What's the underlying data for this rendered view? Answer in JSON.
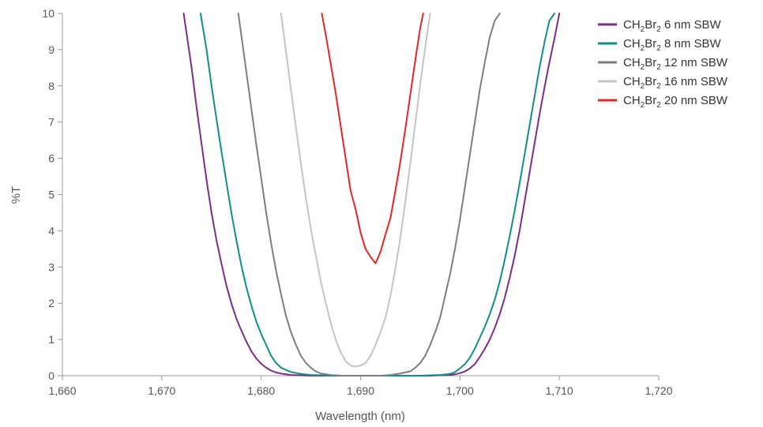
{
  "chart_data": {
    "type": "line",
    "xlabel": "Wavelength (nm)",
    "ylabel": "%T",
    "xlim": [
      1660,
      1720
    ],
    "ylim": [
      0,
      10
    ],
    "x_ticks": [
      {
        "value": 1660,
        "label": "1,660"
      },
      {
        "value": 1670,
        "label": "1,670"
      },
      {
        "value": 1680,
        "label": "1,680"
      },
      {
        "value": 1690,
        "label": "1,690"
      },
      {
        "value": 1700,
        "label": "1,700"
      },
      {
        "value": 1710,
        "label": "1,710"
      },
      {
        "value": 1720,
        "label": "1,720"
      }
    ],
    "y_ticks": [
      {
        "value": 0,
        "label": "0"
      },
      {
        "value": 1,
        "label": "1"
      },
      {
        "value": 2,
        "label": "2"
      },
      {
        "value": 3,
        "label": "3"
      },
      {
        "value": 4,
        "label": "4"
      },
      {
        "value": 5,
        "label": "5"
      },
      {
        "value": 6,
        "label": "6"
      },
      {
        "value": 7,
        "label": "7"
      },
      {
        "value": 8,
        "label": "8"
      },
      {
        "value": 9,
        "label": "9"
      },
      {
        "value": 10,
        "label": "10"
      }
    ],
    "grid": false,
    "legend_position": "top-right",
    "series": [
      {
        "name": "CH2Br2 6 nm SBW",
        "label_parts": {
          "pre": "CH",
          "sub1": "2",
          "mid": "Br",
          "sub2": "2",
          "post": " 6 nm SBW"
        },
        "color": "#7b2d8b",
        "x": [
          1672.2,
          1673,
          1673.5,
          1674,
          1674.5,
          1675,
          1675.5,
          1676,
          1676.5,
          1677,
          1677.5,
          1678,
          1678.5,
          1679,
          1679.5,
          1680,
          1680.5,
          1681,
          1681.5,
          1682,
          1682.5,
          1683,
          1684,
          1685,
          1686,
          1687,
          1688,
          1689,
          1690,
          1691,
          1692,
          1693,
          1694,
          1695,
          1696,
          1697,
          1698,
          1699,
          1699.5,
          1700,
          1700.5,
          1701,
          1701.5,
          1702,
          1702.5,
          1703,
          1703.5,
          1704,
          1704.5,
          1705,
          1705.5,
          1706,
          1706.5,
          1707,
          1707.5,
          1708,
          1708.5,
          1709,
          1709.5,
          1710
        ],
        "y": [
          10,
          8.5,
          7.4,
          6.4,
          5.4,
          4.5,
          3.75,
          3.1,
          2.5,
          2.0,
          1.58,
          1.25,
          0.95,
          0.68,
          0.48,
          0.33,
          0.22,
          0.14,
          0.09,
          0.06,
          0.04,
          0.02,
          0.01,
          0.0,
          0.0,
          0.0,
          0.0,
          0.0,
          0.0,
          0.0,
          0.0,
          0.0,
          0.0,
          0.0,
          0.0,
          0.0,
          0.01,
          0.02,
          0.04,
          0.07,
          0.12,
          0.2,
          0.32,
          0.52,
          0.74,
          1.0,
          1.32,
          1.7,
          2.15,
          2.7,
          3.3,
          4.0,
          4.8,
          5.6,
          6.4,
          7.2,
          7.95,
          8.65,
          9.3,
          10
        ]
      },
      {
        "name": "CH2Br2 8 nm SBW",
        "label_parts": {
          "pre": "CH",
          "sub1": "2",
          "mid": "Br",
          "sub2": "2",
          "post": " 8 nm SBW"
        },
        "color": "#0f8f86",
        "x": [
          1673.9,
          1674.5,
          1675,
          1675.5,
          1676,
          1676.5,
          1677,
          1677.5,
          1678,
          1678.5,
          1679,
          1679.5,
          1680,
          1680.5,
          1681,
          1681.5,
          1682,
          1683,
          1684,
          1685,
          1686,
          1687,
          1688,
          1689,
          1690,
          1691,
          1692,
          1693,
          1694,
          1695,
          1696,
          1697,
          1698,
          1699,
          1699.5,
          1700,
          1700.5,
          1701,
          1701.5,
          1702,
          1702.5,
          1703,
          1703.5,
          1704,
          1704.5,
          1705,
          1705.5,
          1706,
          1706.5,
          1707,
          1707.5,
          1708,
          1708.5,
          1709,
          1709.5
        ],
        "y": [
          10,
          9.0,
          8.0,
          7.1,
          6.2,
          5.35,
          4.5,
          3.75,
          3.05,
          2.45,
          1.95,
          1.5,
          1.15,
          0.85,
          0.55,
          0.35,
          0.22,
          0.1,
          0.05,
          0.02,
          0.01,
          0.0,
          0.0,
          0.0,
          0.0,
          0.0,
          0.0,
          0.0,
          0.0,
          0.0,
          0.0,
          0.01,
          0.02,
          0.05,
          0.1,
          0.2,
          0.32,
          0.5,
          0.75,
          1.05,
          1.35,
          1.7,
          2.1,
          2.6,
          3.2,
          3.85,
          4.55,
          5.3,
          6.1,
          6.9,
          7.7,
          8.5,
          9.2,
          9.8,
          10
        ]
      },
      {
        "name": "CH2Br2 12 nm SBW",
        "label_parts": {
          "pre": "CH",
          "sub1": "2",
          "mid": "Br",
          "sub2": "2",
          "post": " 12 nm SBW"
        },
        "color": "#7d7d7d",
        "x": [
          1677.7,
          1678,
          1678.5,
          1679,
          1679.5,
          1680,
          1680.5,
          1681,
          1681.5,
          1682,
          1682.5,
          1683,
          1683.5,
          1684,
          1684.5,
          1685,
          1685.5,
          1686,
          1687,
          1688,
          1689,
          1690,
          1691,
          1692,
          1693,
          1694,
          1695,
          1695.5,
          1696,
          1696.5,
          1697,
          1697.5,
          1698,
          1698.5,
          1699,
          1699.5,
          1700,
          1700.5,
          1701,
          1701.5,
          1702,
          1702.5,
          1703,
          1703.5,
          1704
        ],
        "y": [
          10,
          9.4,
          8.4,
          7.4,
          6.4,
          5.45,
          4.5,
          3.65,
          2.9,
          2.25,
          1.65,
          1.2,
          0.85,
          0.55,
          0.35,
          0.22,
          0.12,
          0.06,
          0.02,
          0.0,
          0.0,
          0.0,
          0.0,
          0.0,
          0.02,
          0.06,
          0.12,
          0.22,
          0.35,
          0.55,
          0.85,
          1.2,
          1.6,
          2.2,
          2.8,
          3.5,
          4.3,
          5.2,
          6.1,
          7.0,
          7.9,
          8.65,
          9.35,
          9.8,
          10
        ]
      },
      {
        "name": "CH2Br2 16 nm SBW",
        "label_parts": {
          "pre": "CH",
          "sub1": "2",
          "mid": "Br",
          "sub2": "2",
          "post": " 16 nm SBW"
        },
        "color": "#c4c4c4",
        "x": [
          1682,
          1682.5,
          1683,
          1683.5,
          1684,
          1684.5,
          1685,
          1685.5,
          1686,
          1686.5,
          1687,
          1687.5,
          1688,
          1688.5,
          1689,
          1689.5,
          1690,
          1690.5,
          1691,
          1691.5,
          1692,
          1692.5,
          1693,
          1693.5,
          1694,
          1694.5,
          1695,
          1695.5,
          1696,
          1696.5,
          1697
        ],
        "y": [
          10,
          8.95,
          7.9,
          6.85,
          5.85,
          4.9,
          4.05,
          3.3,
          2.6,
          2.0,
          1.45,
          1.0,
          0.65,
          0.4,
          0.28,
          0.25,
          0.28,
          0.35,
          0.55,
          0.85,
          1.2,
          1.6,
          2.2,
          2.95,
          3.8,
          4.8,
          5.85,
          6.95,
          8.05,
          9.05,
          10
        ]
      },
      {
        "name": "CH2Br2 20 nm SBW",
        "label_parts": {
          "pre": "CH",
          "sub1": "2",
          "mid": "Br",
          "sub2": "2",
          "post": " 20 nm SBW"
        },
        "color": "#e8261f",
        "x": [
          1686.1,
          1686.5,
          1687,
          1687.5,
          1688,
          1688.5,
          1689,
          1689.5,
          1690,
          1690.5,
          1691,
          1691.5,
          1692,
          1692.5,
          1693,
          1693.5,
          1694,
          1694.5,
          1695,
          1695.5,
          1696,
          1696.3
        ],
        "y": [
          10,
          9.4,
          8.6,
          7.8,
          6.9,
          6.0,
          5.1,
          4.6,
          3.95,
          3.5,
          3.28,
          3.1,
          3.42,
          3.9,
          4.35,
          5.1,
          5.9,
          6.8,
          7.75,
          8.7,
          9.6,
          10
        ]
      }
    ]
  }
}
